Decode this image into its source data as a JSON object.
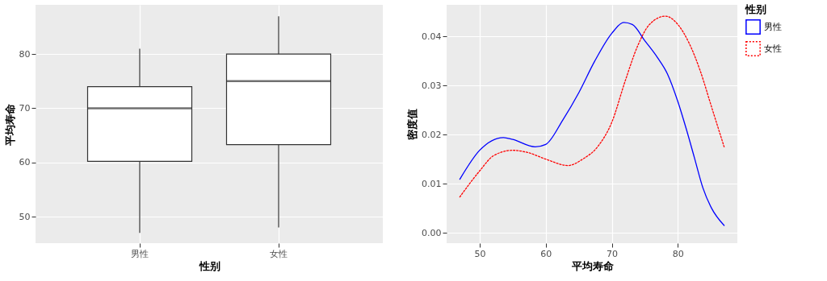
{
  "chart_data": [
    {
      "type": "box",
      "categories": [
        "男性",
        "女性"
      ],
      "xlabel": "性别",
      "ylabel": "平均寿命",
      "ylim": [
        45.1,
        89.1
      ],
      "yticks": [
        50,
        60,
        70,
        80
      ],
      "grid": true,
      "boxes": [
        {
          "low": 47,
          "q1": 60.2,
          "median": 70,
          "q3": 74,
          "high": 81
        },
        {
          "low": 48,
          "q1": 63.3,
          "median": 75,
          "q3": 80,
          "high": 87
        }
      ]
    },
    {
      "type": "line",
      "xlabel": "平均寿命",
      "ylabel": "密度值",
      "legend_title": "性别",
      "legend": "right",
      "grid": true,
      "xlim": [
        45,
        89
      ],
      "xticks": [
        50,
        60,
        70,
        80
      ],
      "ylim": [
        -0.0021,
        0.0464
      ],
      "yticks": [
        {
          "value": 0,
          "label": "0.00"
        },
        {
          "value": 0.01,
          "label": "0.01"
        },
        {
          "value": 0.02,
          "label": "0.02"
        },
        {
          "value": 0.03,
          "label": "0.03"
        },
        {
          "value": 0.04,
          "label": "0.04"
        }
      ],
      "series": [
        {
          "name": "男性",
          "color": "#0000ff",
          "line_style": "solid",
          "x": [
            47,
            50,
            53.6,
            55,
            58.4,
            60,
            62.6,
            65,
            67.4,
            70,
            71.8,
            73.1,
            75,
            76.9,
            78.4,
            80,
            81.3,
            82.5,
            83.8,
            85.1,
            87
          ],
          "values": [
            0.0109,
            0.0168,
            0.0194,
            0.019,
            0.0175,
            0.018,
            0.023,
            0.0285,
            0.0349,
            0.0406,
            0.0428,
            0.0424,
            0.0391,
            0.0357,
            0.0324,
            0.0267,
            0.021,
            0.0153,
            0.0091,
            0.005,
            0.0015
          ]
        },
        {
          "name": "女性",
          "color": "#ff0000",
          "line_style": "dotted",
          "x": [
            47,
            50,
            52.1,
            55,
            57.4,
            60,
            63.4,
            65.6,
            67.9,
            70,
            72,
            73.9,
            75.7,
            78.1,
            80,
            81.7,
            83.4,
            85.1,
            87
          ],
          "values": [
            0.0073,
            0.0126,
            0.0157,
            0.0168,
            0.0163,
            0.015,
            0.0137,
            0.015,
            0.0176,
            0.0225,
            0.0308,
            0.038,
            0.0424,
            0.0441,
            0.0424,
            0.0386,
            0.0329,
            0.0256,
            0.0175
          ]
        }
      ]
    }
  ]
}
